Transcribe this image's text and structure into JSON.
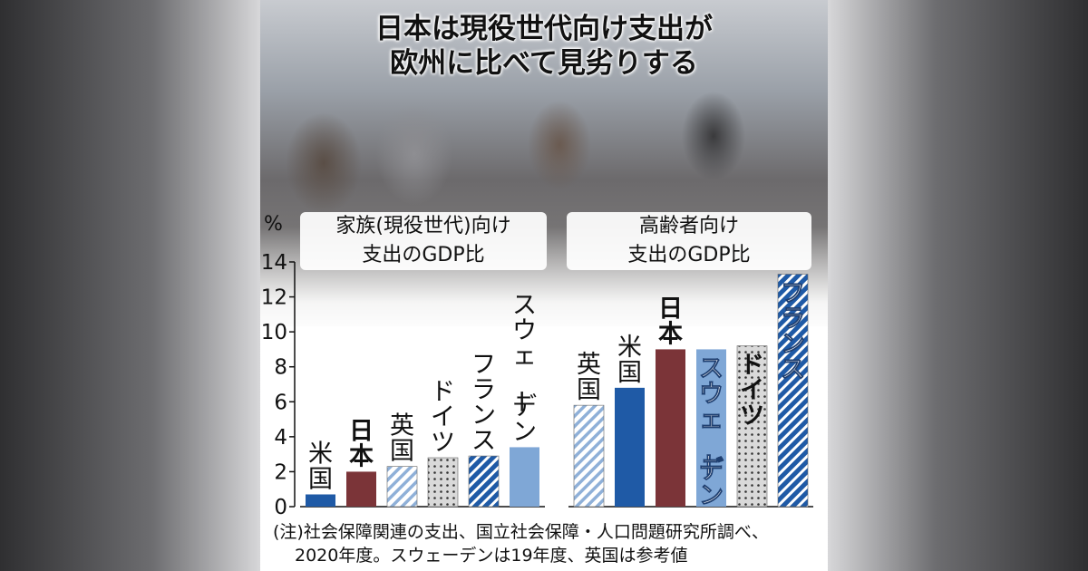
{
  "headline": {
    "line1": "日本は現役世代向け支出が",
    "line2": "欧州に比べて見劣りする"
  },
  "chart_data": [
    {
      "type": "bar",
      "title": "家族(現役世代)向け支出のGDP比",
      "title_line1": "家族(現役世代)向け",
      "title_line2": "支出のGDP比",
      "ylabel": "%",
      "ylim": [
        0,
        14
      ],
      "yticks": [
        "0",
        "2",
        "4",
        "6",
        "8",
        "10",
        "12",
        "14"
      ],
      "categories": [
        "米国",
        "日本",
        "英国",
        "ドイツ",
        "フランス",
        "スウェーデン"
      ],
      "values": [
        0.7,
        2.0,
        2.3,
        2.8,
        2.9,
        3.4
      ],
      "bar_styles": [
        "solid-blue",
        "solid-maroon",
        "hatch-light",
        "dots",
        "hatch-blue",
        "solid-lightblue"
      ]
    },
    {
      "type": "bar",
      "title": "高齢者向け支出のGDP比",
      "title_line1": "高齢者向け",
      "title_line2": "支出のGDP比",
      "ylim": [
        0,
        14
      ],
      "categories": [
        "英国",
        "米国",
        "日本",
        "スウェーデン",
        "ドイツ",
        "フランス"
      ],
      "values": [
        5.8,
        6.8,
        9.0,
        9.0,
        9.2,
        13.3
      ],
      "bar_styles": [
        "hatch-light",
        "solid-blue",
        "solid-maroon",
        "solid-lightblue",
        "dots",
        "hatch-blue"
      ]
    }
  ],
  "note": {
    "line1": "(注)社会保障関連の支出、国立社会保障・人口問題研究所調べ、",
    "line2": "2020年度。スウェーデンは19年度、英国は参考値"
  },
  "colors": {
    "blue": "#1f5aa6",
    "maroon": "#7b3438",
    "lightblue": "#7fa7d6",
    "hatch_light": "#9bb8dc",
    "dots": "#c8c8c8"
  }
}
